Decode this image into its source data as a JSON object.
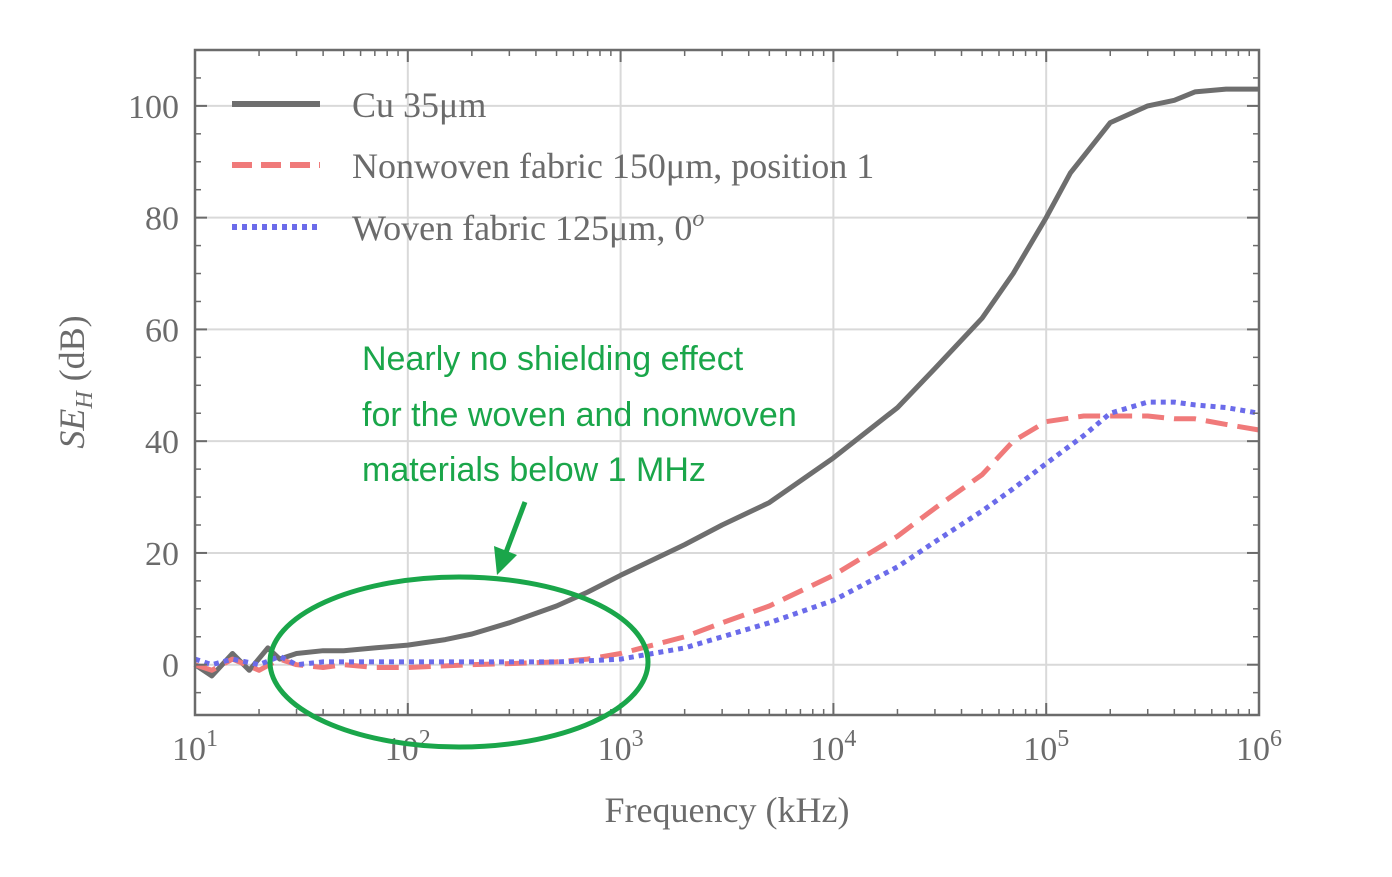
{
  "chart_data": {
    "type": "line",
    "xlabel": "Frequency (kHz)",
    "ylabel_main": "SE",
    "ylabel_sub": "H",
    "ylabel_unit": "(dB)",
    "x_scale": "log",
    "xlim": [
      10,
      1000000
    ],
    "ylim": [
      -9,
      110
    ],
    "x_ticks": [
      {
        "base": "10",
        "exp": "1",
        "value": 10
      },
      {
        "base": "10",
        "exp": "2",
        "value": 100
      },
      {
        "base": "10",
        "exp": "3",
        "value": 1000
      },
      {
        "base": "10",
        "exp": "4",
        "value": 10000
      },
      {
        "base": "10",
        "exp": "5",
        "value": 100000
      },
      {
        "base": "10",
        "exp": "6",
        "value": 1000000
      }
    ],
    "y_ticks": [
      0,
      20,
      40,
      60,
      80,
      100
    ],
    "grid": true,
    "legend_position": "top-left",
    "series": [
      {
        "name": "Cu 35μm",
        "style": "solid",
        "color": "#6e6e6e",
        "x": [
          10,
          12,
          15,
          18,
          22,
          25,
          30,
          40,
          50,
          70,
          100,
          150,
          200,
          300,
          500,
          700,
          1000,
          2000,
          3000,
          5000,
          10000,
          20000,
          30000,
          50000,
          70000,
          100000,
          130000,
          150000,
          200000,
          300000,
          400000,
          500000,
          700000,
          1000000
        ],
        "y": [
          0,
          -2,
          2,
          -1,
          3,
          1,
          2,
          2.5,
          2.5,
          3,
          3.5,
          4.5,
          5.5,
          7.5,
          10.5,
          13,
          16,
          21.5,
          25,
          29,
          37,
          46,
          53,
          62,
          70,
          80,
          88,
          91,
          97,
          100,
          101,
          102.5,
          103,
          103
        ]
      },
      {
        "name": "Nonwoven fabric 150μm, position 1",
        "style": "dashed",
        "color": "#f07a7a",
        "x": [
          10,
          12,
          15,
          20,
          25,
          30,
          40,
          50,
          70,
          100,
          200,
          300,
          500,
          700,
          1000,
          2000,
          3000,
          5000,
          10000,
          20000,
          30000,
          50000,
          70000,
          100000,
          150000,
          200000,
          300000,
          400000,
          500000,
          700000,
          1000000
        ],
        "y": [
          0,
          -1,
          1,
          -1,
          1,
          0,
          -0.5,
          0,
          -0.5,
          -0.5,
          0,
          0.2,
          0.5,
          1,
          2,
          5,
          7.5,
          10.5,
          16,
          23,
          28,
          34,
          40,
          43.5,
          44.5,
          44.5,
          44.5,
          44,
          44,
          43,
          42
        ]
      },
      {
        "name": "Woven fabric 125μm, 0",
        "name_sup": "o",
        "style": "dotted",
        "color": "#6b6bea",
        "x": [
          10,
          12,
          15,
          20,
          25,
          30,
          40,
          50,
          70,
          100,
          200,
          300,
          500,
          700,
          1000,
          2000,
          3000,
          5000,
          10000,
          20000,
          30000,
          50000,
          70000,
          100000,
          150000,
          200000,
          300000,
          400000,
          500000,
          700000,
          1000000
        ],
        "y": [
          1,
          0,
          1,
          0,
          1.5,
          0,
          0.5,
          0.5,
          0.5,
          0.5,
          0.5,
          0.5,
          0.5,
          0.7,
          1,
          3,
          5,
          7.5,
          11.5,
          17.5,
          22,
          27.5,
          31.5,
          36,
          41,
          45,
          47,
          47,
          46.5,
          46,
          45
        ]
      }
    ],
    "annotation": {
      "lines": [
        "Nearly no shielding effect",
        "for the woven and nonwoven",
        "materials below 1 MHz"
      ],
      "color": "#1aa64a"
    }
  }
}
